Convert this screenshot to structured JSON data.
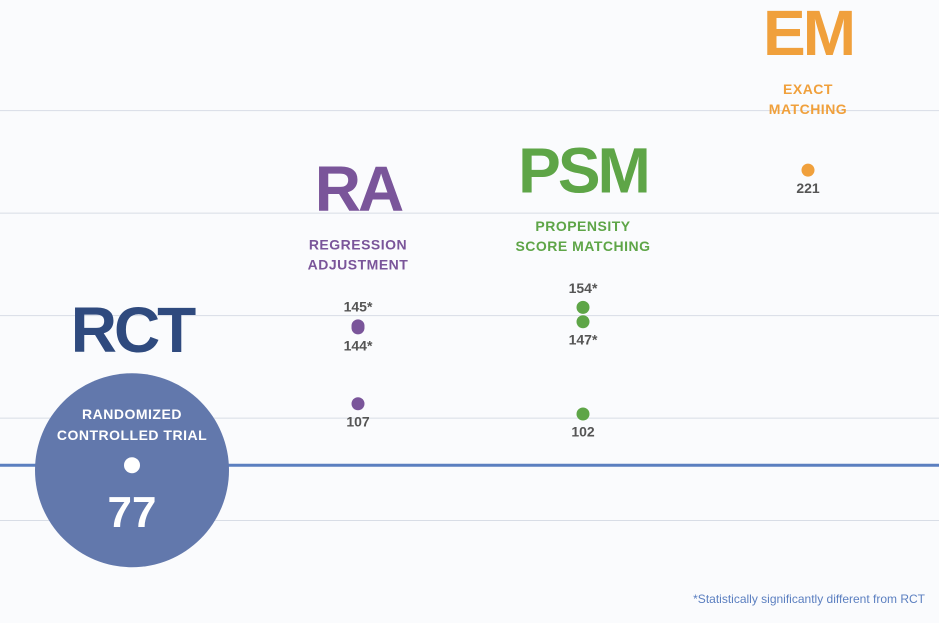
{
  "chart_data": {
    "type": "dot",
    "ylim": [
      0,
      304
    ],
    "yticks": [
      50,
      100,
      150,
      200,
      250
    ],
    "grid": true,
    "baseline_series": 0,
    "footnote": "*Statistically significantly different from RCT",
    "series": [
      {
        "name": "RCT",
        "full_name": [
          "RANDOMIZED",
          "CONTROLLED TRIAL"
        ],
        "color": "#2f4a7e",
        "values": [
          77
        ]
      },
      {
        "name": "RA",
        "full_name": [
          "REGRESSION",
          "ADJUSTMENT"
        ],
        "color": "#7a559a",
        "values": [
          145,
          144,
          107
        ],
        "value_labels": [
          "145*",
          "144*",
          "107"
        ]
      },
      {
        "name": "PSM",
        "full_name": [
          "PROPENSITY",
          "SCORE MATCHING"
        ],
        "color": "#5ea547",
        "values": [
          154,
          147,
          102
        ],
        "value_labels": [
          "154*",
          "147*",
          "102"
        ]
      },
      {
        "name": "EM",
        "full_name": [
          "EXACT",
          "MATCHING"
        ],
        "color": "#f0a03c",
        "values": [
          221
        ]
      }
    ]
  }
}
